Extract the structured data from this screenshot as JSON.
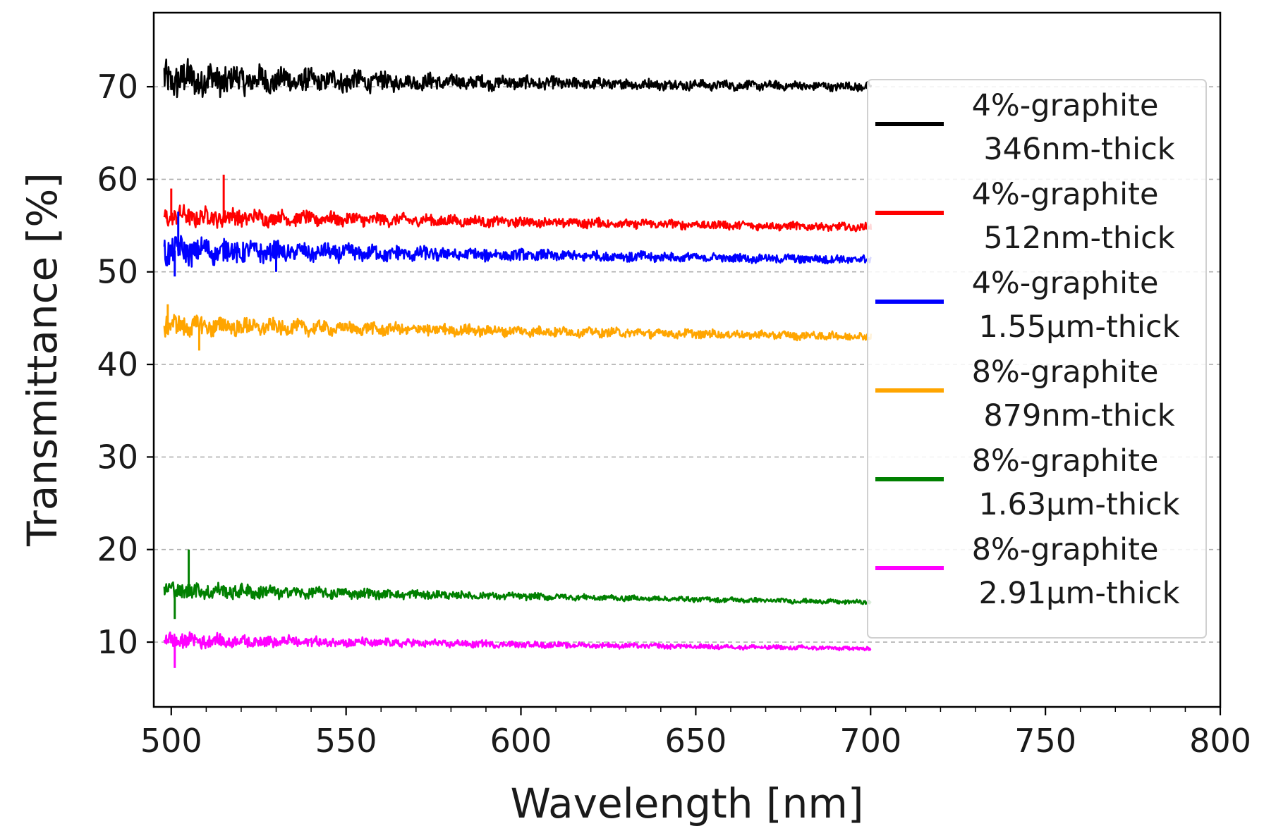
{
  "chart_data": {
    "type": "line",
    "title": "",
    "xlabel": "Wavelength [nm]",
    "ylabel": "Transmittance [%]",
    "xlim": [
      495,
      800
    ],
    "ylim": [
      3,
      78
    ],
    "x_ticks": [
      500,
      550,
      600,
      650,
      700,
      750,
      800
    ],
    "y_ticks": [
      10,
      20,
      30,
      40,
      50,
      60,
      70
    ],
    "x_tick_labels": [
      "500",
      "550",
      "600",
      "650",
      "700",
      "750",
      "800"
    ],
    "y_tick_labels": [
      "10",
      "20",
      "30",
      "40",
      "50",
      "60",
      "70"
    ],
    "grid": "horizontal dashed",
    "legend_position": "right",
    "x_range_of_data": [
      498,
      700
    ],
    "series": [
      {
        "name_line1": "4%-graphite",
        "name_line2": "346nm-thick",
        "color": "#000000",
        "mean_start": 70.8,
        "mean_end": 70.0,
        "noise_start": 3.2,
        "noise_end": 0.6,
        "spikes": []
      },
      {
        "name_line1": "4%-graphite",
        "name_line2": "512nm-thick",
        "color": "#ff0000",
        "mean_start": 56.0,
        "mean_end": 54.8,
        "noise_start": 1.8,
        "noise_end": 0.6,
        "spikes": [
          {
            "x": 500,
            "y": 59
          },
          {
            "x": 515,
            "y": 60.5
          }
        ]
      },
      {
        "name_line1": "4%-graphite",
        "name_line2": "1.55μm-thick",
        "color": "#0000ff",
        "mean_start": 52.3,
        "mean_end": 51.3,
        "noise_start": 2.4,
        "noise_end": 0.6,
        "spikes": [
          {
            "x": 501,
            "y": 49.5
          },
          {
            "x": 502,
            "y": 56.5
          },
          {
            "x": 530,
            "y": 50
          }
        ]
      },
      {
        "name_line1": "8%-graphite",
        "name_line2": "879nm-thick",
        "color": "#ffa500",
        "mean_start": 44.2,
        "mean_end": 43.0,
        "noise_start": 1.8,
        "noise_end": 0.6,
        "spikes": [
          {
            "x": 499,
            "y": 46.5
          },
          {
            "x": 508,
            "y": 41.5
          }
        ]
      },
      {
        "name_line1": "8%-graphite",
        "name_line2": "1.63μm-thick",
        "color": "#008000",
        "mean_start": 15.6,
        "mean_end": 14.3,
        "noise_start": 1.6,
        "noise_end": 0.3,
        "spikes": [
          {
            "x": 505,
            "y": 20
          },
          {
            "x": 501,
            "y": 12.5
          }
        ]
      },
      {
        "name_line1": "8%-graphite",
        "name_line2": "2.91μm-thick",
        "color": "#ff00ff",
        "mean_start": 10.2,
        "mean_end": 9.3,
        "noise_start": 1.4,
        "noise_end": 0.3,
        "spikes": [
          {
            "x": 501,
            "y": 7.2
          }
        ]
      }
    ]
  }
}
